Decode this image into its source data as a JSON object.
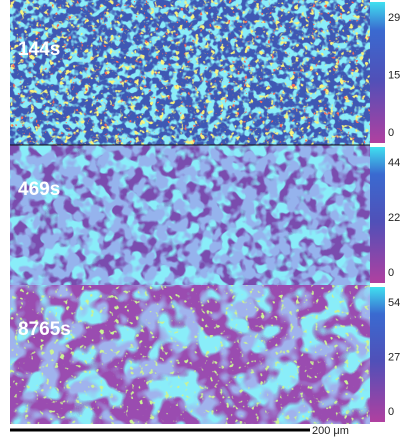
{
  "panels": [
    {
      "label": "144s",
      "scale_ticks": [
        29,
        15,
        0
      ]
    },
    {
      "label": "469s",
      "scale_ticks": [
        44,
        22,
        0
      ]
    },
    {
      "label": "8765s",
      "scale_ticks": [
        54,
        27,
        0
      ]
    }
  ],
  "scale_bar": "200 μm"
}
